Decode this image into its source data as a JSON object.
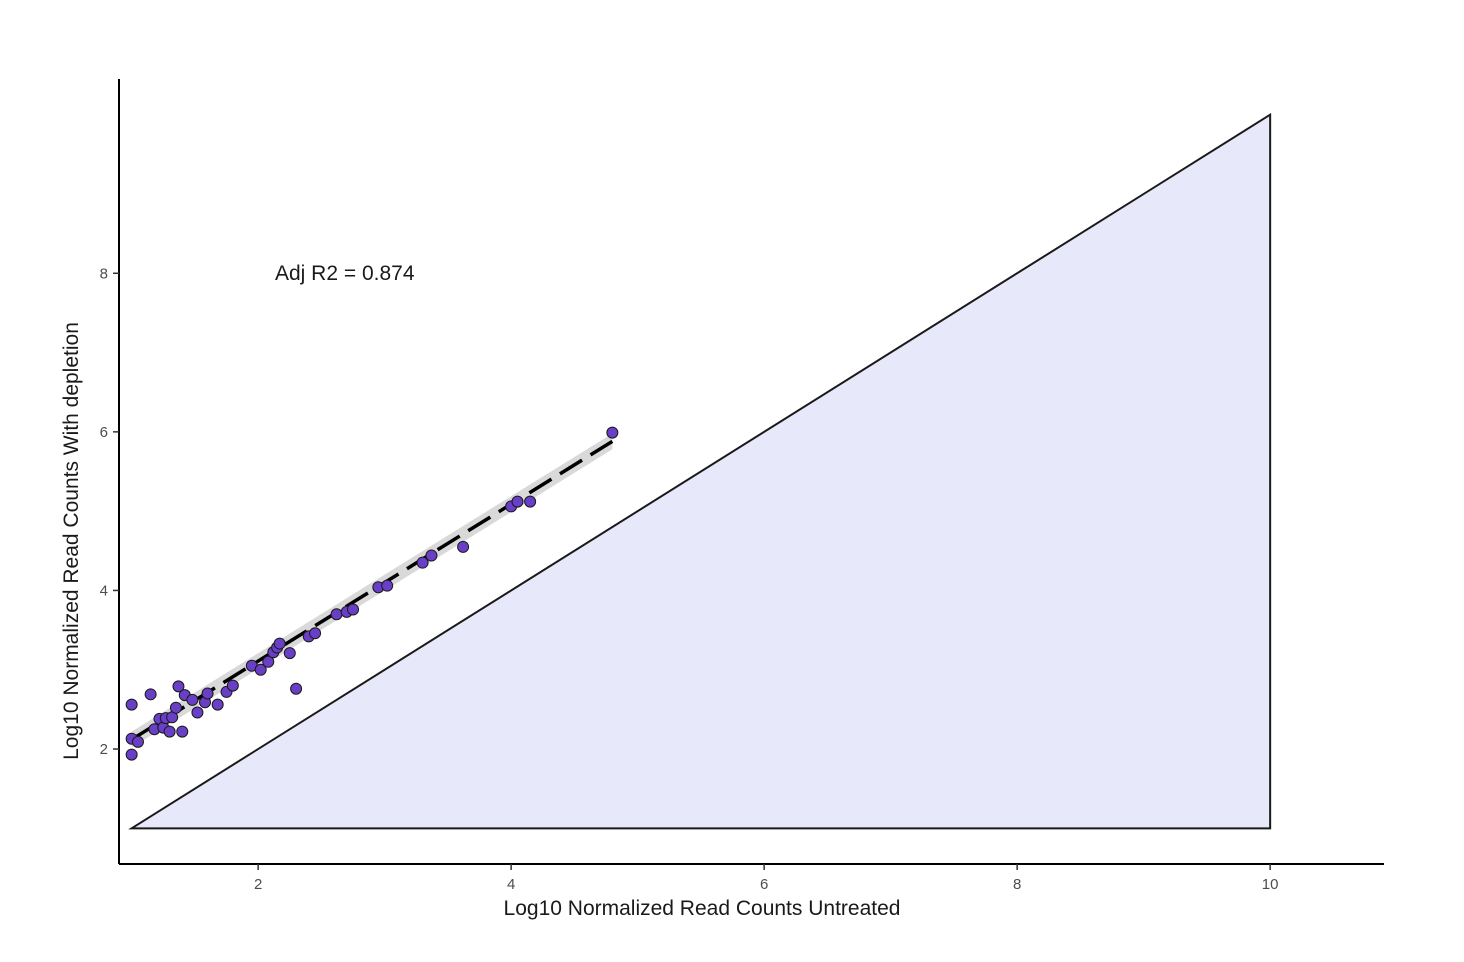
{
  "chart_data": {
    "type": "scatter",
    "title": "",
    "xlabel": "Log10 Normalized Read Counts Untreated",
    "ylabel": "Log10 Normalized Read Counts  With depletion",
    "xlim": [
      0.9,
      10.9
    ],
    "ylim": [
      0.55,
      10.45
    ],
    "xticks": [
      2,
      4,
      6,
      8,
      10
    ],
    "yticks": [
      2,
      4,
      6,
      8
    ],
    "grid": false,
    "annotation": "Adj R2 =  0.874",
    "point_color": "#6a3fc8",
    "point_edge_color": "#1a1a1a",
    "fit_line_color": "#000000",
    "ci_band_color": "#d9d9d9",
    "triangle_fill": "#e8e8fb",
    "triangle_edge": "#1a1a1a",
    "triangle": [
      [
        1.0,
        1.0
      ],
      [
        10.0,
        10.0
      ],
      [
        10.0,
        1.0
      ]
    ],
    "fit": {
      "x": [
        1.0,
        4.8
      ],
      "y": [
        2.12,
        5.88
      ],
      "ci_halfwidth": 0.1
    },
    "points": [
      [
        1.0,
        1.93
      ],
      [
        1.0,
        2.13
      ],
      [
        1.0,
        2.56
      ],
      [
        1.05,
        2.09
      ],
      [
        1.15,
        2.69
      ],
      [
        1.18,
        2.25
      ],
      [
        1.22,
        2.38
      ],
      [
        1.25,
        2.27
      ],
      [
        1.27,
        2.39
      ],
      [
        1.3,
        2.22
      ],
      [
        1.32,
        2.4
      ],
      [
        1.35,
        2.52
      ],
      [
        1.37,
        2.79
      ],
      [
        1.4,
        2.22
      ],
      [
        1.42,
        2.68
      ],
      [
        1.48,
        2.62
      ],
      [
        1.52,
        2.46
      ],
      [
        1.58,
        2.59
      ],
      [
        1.6,
        2.7
      ],
      [
        1.68,
        2.56
      ],
      [
        1.75,
        2.72
      ],
      [
        1.8,
        2.8
      ],
      [
        1.95,
        3.05
      ],
      [
        2.02,
        3.0
      ],
      [
        2.08,
        3.1
      ],
      [
        2.12,
        3.22
      ],
      [
        2.15,
        3.28
      ],
      [
        2.17,
        3.33
      ],
      [
        2.25,
        3.21
      ],
      [
        2.3,
        2.76
      ],
      [
        2.4,
        3.42
      ],
      [
        2.45,
        3.46
      ],
      [
        2.62,
        3.7
      ],
      [
        2.7,
        3.73
      ],
      [
        2.75,
        3.76
      ],
      [
        2.95,
        4.04
      ],
      [
        3.02,
        4.06
      ],
      [
        3.3,
        4.35
      ],
      [
        3.37,
        4.44
      ],
      [
        3.62,
        4.55
      ],
      [
        4.0,
        5.06
      ],
      [
        4.05,
        5.12
      ],
      [
        4.15,
        5.12
      ],
      [
        4.8,
        5.99
      ]
    ]
  }
}
